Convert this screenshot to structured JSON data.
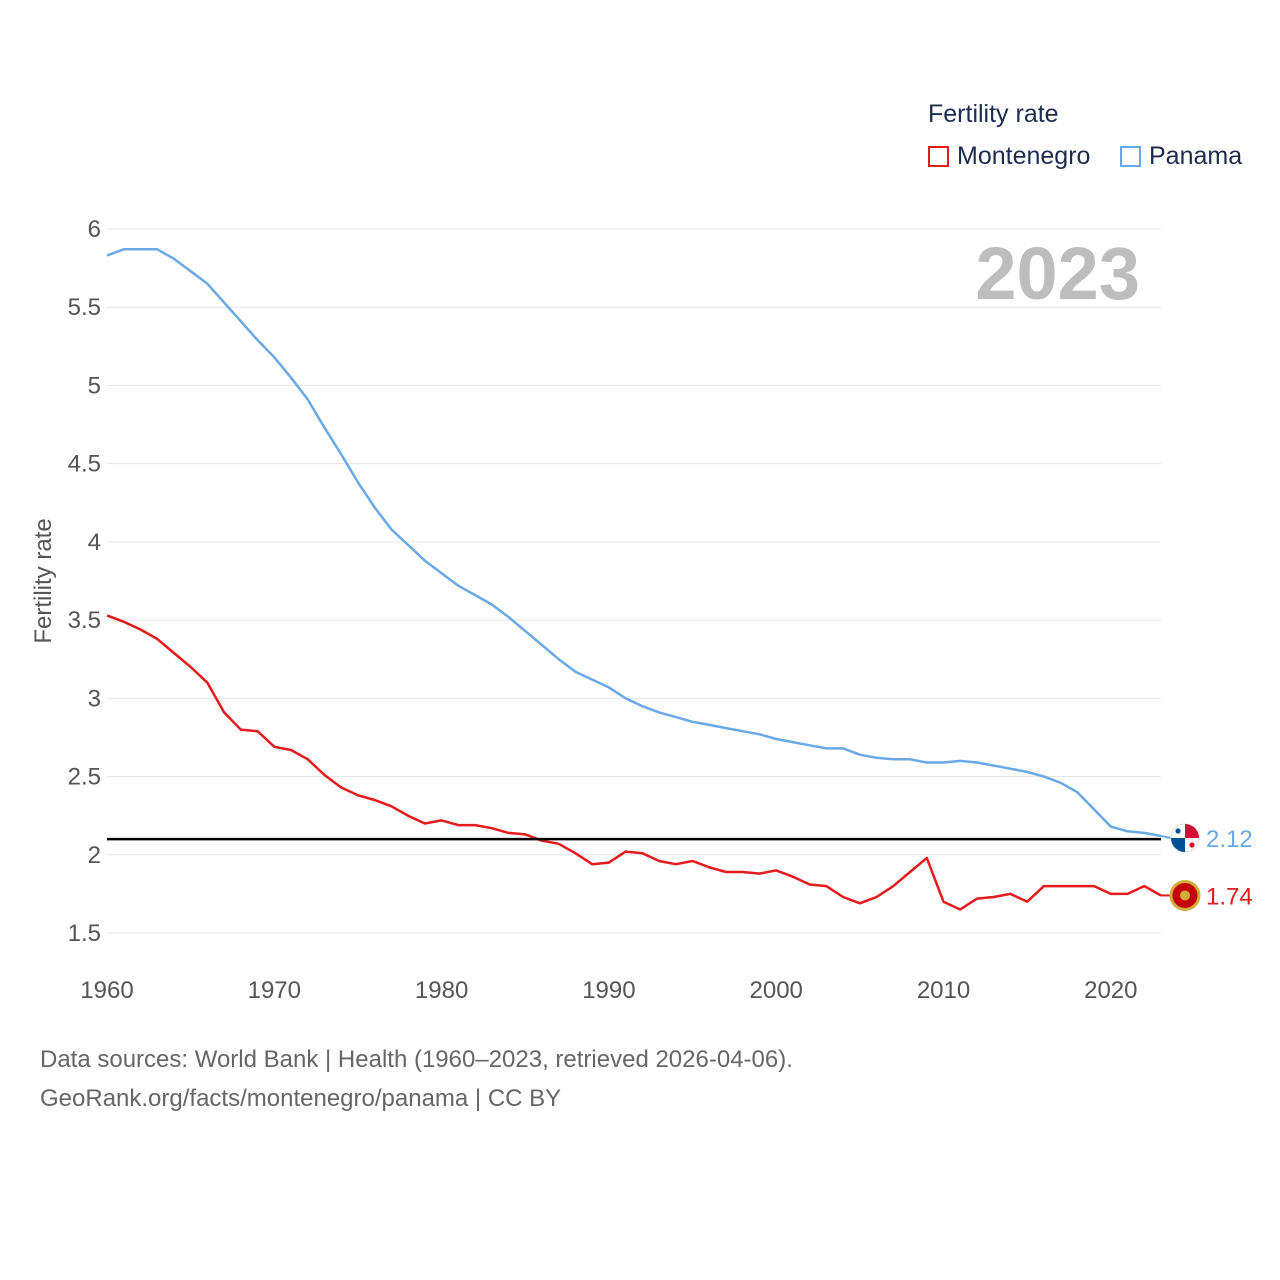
{
  "legend": {
    "title": "Fertility rate",
    "items": [
      {
        "label": "Montenegro",
        "color": "#e41a1c"
      },
      {
        "label": "Panama",
        "color": "#6aa9e6"
      }
    ]
  },
  "chart_data": {
    "type": "line",
    "year_label": "2023",
    "ylabel": "Fertility rate",
    "xlabel": "",
    "ylim": [
      1.2,
      6.15
    ],
    "xlim": [
      1960,
      2023
    ],
    "x_ticks": [
      1960,
      1970,
      1980,
      1990,
      2000,
      2010,
      2020
    ],
    "y_ticks": [
      1.5,
      2,
      2.5,
      3,
      3.5,
      4,
      4.5,
      5,
      5.5,
      6
    ],
    "reference_line": {
      "value": 2.1,
      "color": "#000000"
    },
    "x": [
      1960,
      1961,
      1962,
      1963,
      1964,
      1965,
      1966,
      1967,
      1968,
      1969,
      1970,
      1971,
      1972,
      1973,
      1974,
      1975,
      1976,
      1977,
      1978,
      1979,
      1980,
      1981,
      1982,
      1983,
      1984,
      1985,
      1986,
      1987,
      1988,
      1989,
      1990,
      1991,
      1992,
      1993,
      1994,
      1995,
      1996,
      1997,
      1998,
      1999,
      2000,
      2001,
      2002,
      2003,
      2004,
      2005,
      2006,
      2007,
      2008,
      2009,
      2010,
      2011,
      2012,
      2013,
      2014,
      2015,
      2016,
      2017,
      2018,
      2019,
      2020,
      2021,
      2022,
      2023
    ],
    "series": [
      {
        "name": "Montenegro",
        "color": "#e41a1c",
        "end_label": "1.74",
        "values": [
          3.53,
          3.49,
          3.44,
          3.38,
          3.29,
          3.2,
          3.1,
          2.91,
          2.8,
          2.79,
          2.69,
          2.67,
          2.61,
          2.51,
          2.43,
          2.38,
          2.35,
          2.31,
          2.25,
          2.2,
          2.22,
          2.19,
          2.19,
          2.17,
          2.14,
          2.13,
          2.09,
          2.07,
          2.01,
          1.94,
          1.95,
          2.02,
          2.01,
          1.96,
          1.94,
          1.96,
          1.92,
          1.89,
          1.89,
          1.88,
          1.9,
          1.86,
          1.81,
          1.8,
          1.73,
          1.69,
          1.73,
          1.8,
          1.89,
          1.98,
          1.7,
          1.65,
          1.72,
          1.73,
          1.75,
          1.7,
          1.8,
          1.8,
          1.8,
          1.8,
          1.75,
          1.75,
          1.8,
          1.74
        ]
      },
      {
        "name": "Panama",
        "color": "#6aa9e6",
        "end_label": "2.12",
        "values": [
          5.83,
          5.87,
          5.87,
          5.87,
          5.81,
          5.73,
          5.65,
          5.53,
          5.41,
          5.29,
          5.18,
          5.05,
          4.91,
          4.73,
          4.56,
          4.38,
          4.22,
          4.08,
          3.98,
          3.88,
          3.8,
          3.72,
          3.66,
          3.6,
          3.52,
          3.43,
          3.34,
          3.25,
          3.17,
          3.12,
          3.07,
          3.0,
          2.95,
          2.91,
          2.88,
          2.85,
          2.83,
          2.81,
          2.79,
          2.77,
          2.74,
          2.72,
          2.7,
          2.68,
          2.68,
          2.64,
          2.62,
          2.61,
          2.61,
          2.59,
          2.59,
          2.6,
          2.59,
          2.57,
          2.55,
          2.53,
          2.5,
          2.46,
          2.4,
          2.29,
          2.18,
          2.15,
          2.14,
          2.12
        ]
      }
    ]
  },
  "source": {
    "line1": "Data sources: World Bank | Health (1960–2023, retrieved 2026-04-06).",
    "line2": "GeoRank.org/facts/montenegro/panama | CC BY"
  }
}
